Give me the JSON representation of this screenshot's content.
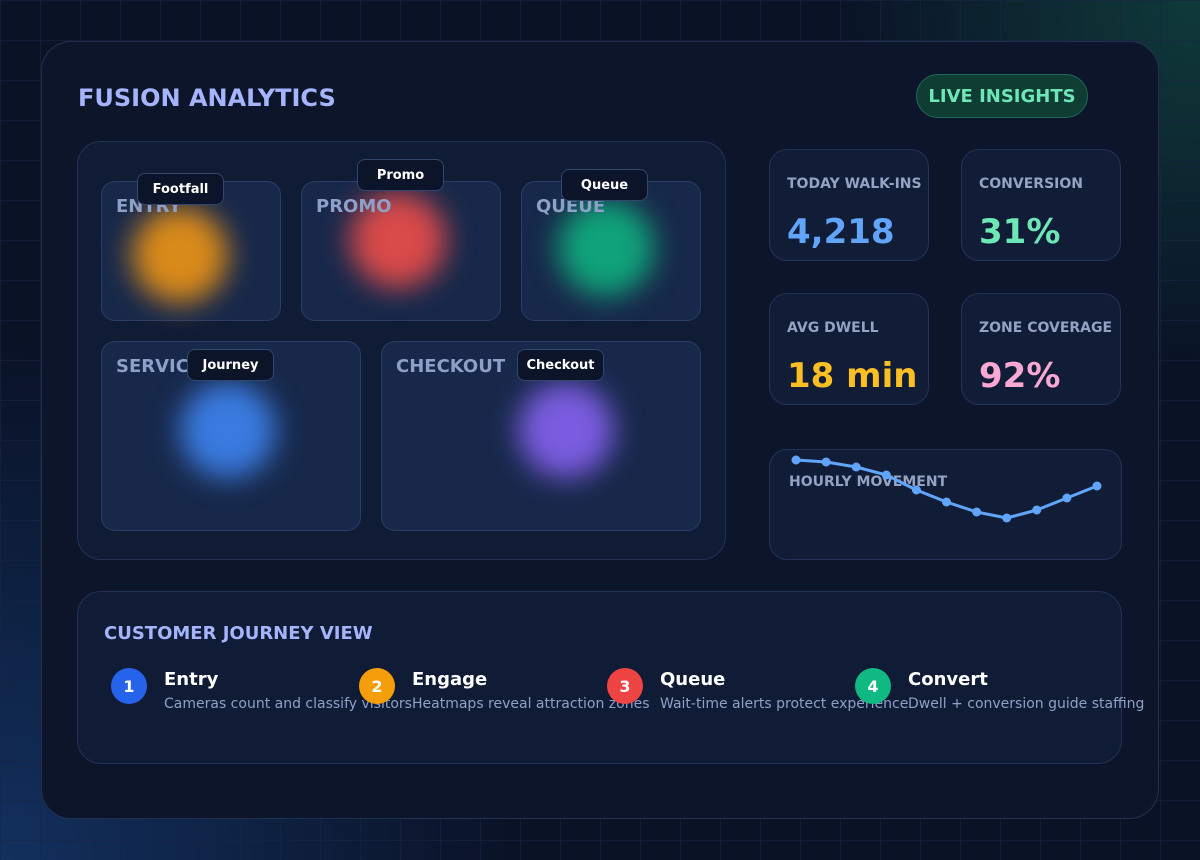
{
  "header": {
    "title": "FUSION ANALYTICS",
    "badge": "LIVE INSIGHTS"
  },
  "zones": [
    {
      "label": "ENTRY",
      "tag": "Footfall"
    },
    {
      "label": "PROMO",
      "tag": "Promo"
    },
    {
      "label": "QUEUE",
      "tag": "Queue"
    },
    {
      "label": "SERVICE",
      "tag": "Journey"
    },
    {
      "label": "CHECKOUT",
      "tag": "Checkout"
    }
  ],
  "kpis": [
    {
      "label": "TODAY WALK-INS",
      "value": "4,218"
    },
    {
      "label": "CONVERSION",
      "value": "31%"
    },
    {
      "label": "AVG DWELL",
      "value": "18 min"
    },
    {
      "label": "ZONE COVERAGE",
      "value": "92%"
    }
  ],
  "hourly_movement": {
    "title": "HOURLY MOVEMENT",
    "values": [
      100,
      98,
      93,
      85,
      70,
      58,
      48,
      42,
      50,
      62,
      74
    ]
  },
  "journey": {
    "title": "CUSTOMER JOURNEY VIEW",
    "steps": [
      {
        "number": 1,
        "title": "Entry",
        "description": "Cameras count and classify visitors"
      },
      {
        "number": 2,
        "title": "Engage",
        "description": "Heatmaps reveal attraction zones"
      },
      {
        "number": 3,
        "title": "Queue",
        "description": "Wait-time alerts protect experience"
      },
      {
        "number": 4,
        "title": "Convert",
        "description": "Dwell + conversion guide staffing"
      }
    ]
  }
}
